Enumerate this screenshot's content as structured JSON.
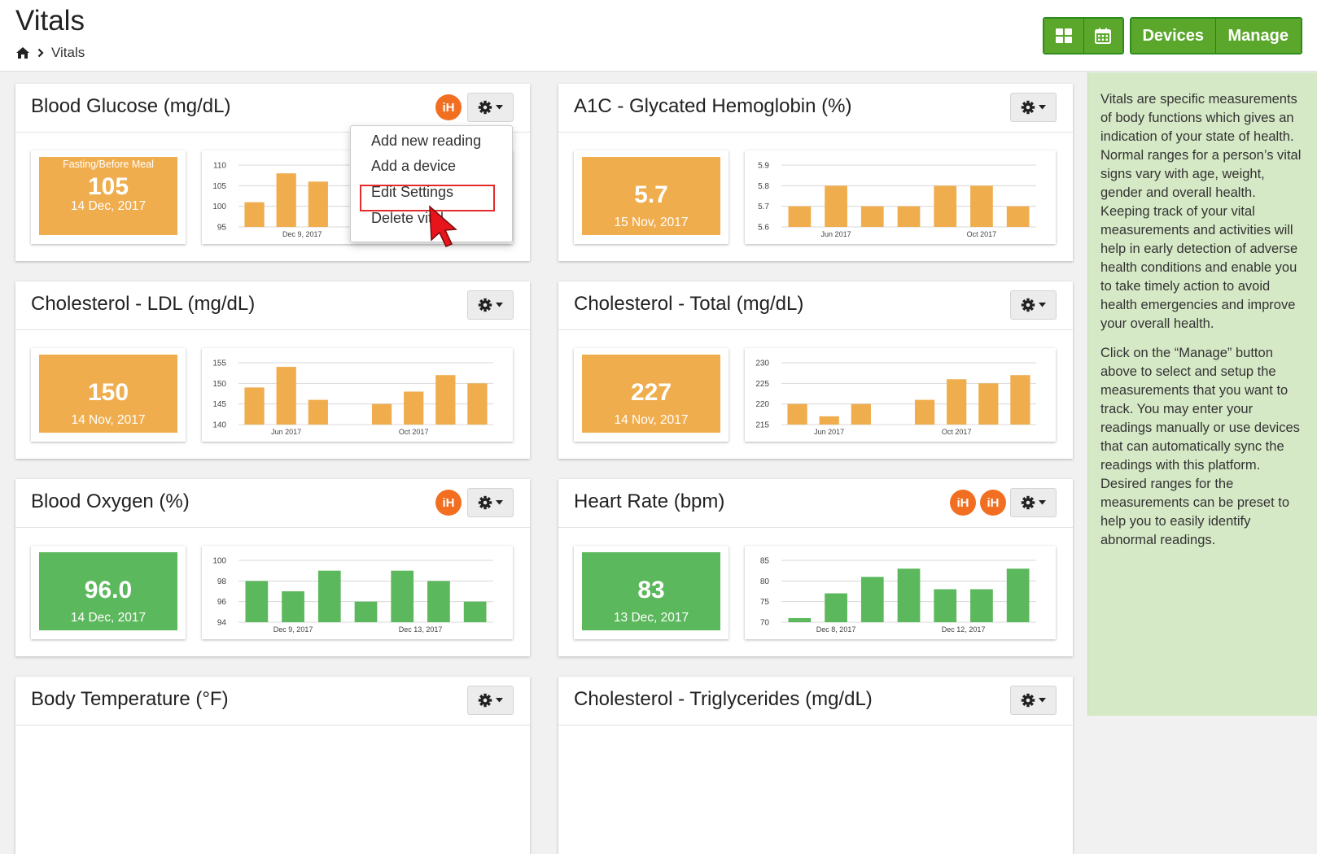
{
  "header": {
    "title": "Vitals",
    "breadcrumb": "Vitals"
  },
  "toolbar": {
    "devices_label": "Devices",
    "manage_label": "Manage"
  },
  "dropdown": {
    "items": [
      "Add new reading",
      "Add a device",
      "Edit Settings",
      "Delete vital"
    ]
  },
  "sidebar": {
    "p1": "Vitals are specific measurements of body functions which gives an indication of your state of health. Normal ranges for a person’s vital signs vary with age, weight, gender and overall health. Keeping track of your vital measurements and activities will help in early detection of adverse health conditions and enable you to take timely action to avoid health emergencies and improve your overall health.",
    "p2": "Click on the “Manage” button above to select and setup the measurements that you want to track. You may enter your readings manually or use devices that can automatically sync the readings with this platform. Desired ranges for the measurements can be preset to help you to easily identify abnormal readings."
  },
  "colors": {
    "orange": "#f0ad4e",
    "green": "#5cb85c",
    "ih_badge": "#f26f21",
    "button_green": "#5ba72b"
  },
  "cards": [
    {
      "title": "Blood Glucose (mg/dL)",
      "ih_count": 1,
      "value": "105",
      "label": "Fasting/Before Meal",
      "date": "14 Dec, 2017",
      "color": "orange"
    },
    {
      "title": "A1C - Glycated Hemoglobin (%)",
      "ih_count": 0,
      "value": "5.7",
      "label": "",
      "date": "15 Nov, 2017",
      "color": "orange"
    },
    {
      "title": "Cholesterol - LDL (mg/dL)",
      "ih_count": 0,
      "value": "150",
      "label": "",
      "date": "14 Nov, 2017",
      "color": "orange"
    },
    {
      "title": "Cholesterol - Total (mg/dL)",
      "ih_count": 0,
      "value": "227",
      "label": "",
      "date": "14 Nov, 2017",
      "color": "orange"
    },
    {
      "title": "Blood Oxygen (%)",
      "ih_count": 1,
      "value": "96.0",
      "label": "",
      "date": "14 Dec, 2017",
      "color": "green"
    },
    {
      "title": "Heart Rate (bpm)",
      "ih_count": 2,
      "value": "83",
      "label": "",
      "date": "13 Dec, 2017",
      "color": "green"
    },
    {
      "title": "Body Temperature (°F)",
      "ih_count": 0
    },
    {
      "title": "Cholesterol - Triglycerides (mg/dL)",
      "ih_count": 0
    }
  ],
  "chart_data": [
    {
      "type": "bar",
      "title": "Blood Glucose (mg/dL)",
      "yticks": [
        "110",
        "105",
        "100",
        "95"
      ],
      "ylim": [
        95,
        110
      ],
      "values": [
        101,
        108,
        106
      ],
      "xticks": [
        "Dec 9, 2017"
      ],
      "xtick_pos": [
        2
      ],
      "n": 8
    },
    {
      "type": "bar",
      "title": "A1C - Glycated Hemoglobin (%)",
      "yticks": [
        "5.9",
        "5.8",
        "5.7",
        "5.6"
      ],
      "ylim": [
        5.6,
        5.9
      ],
      "values": [
        5.7,
        5.8,
        5.7,
        5.7,
        5.8,
        5.8,
        5.7
      ],
      "xticks": [
        "Jun 2017",
        "Oct 2017"
      ],
      "xtick_pos": [
        1.5,
        5.5
      ]
    },
    {
      "type": "bar",
      "title": "Cholesterol - LDL (mg/dL)",
      "yticks": [
        "155",
        "150",
        "145",
        "140"
      ],
      "ylim": [
        140,
        155
      ],
      "values": [
        149,
        154,
        146,
        null,
        145,
        148,
        152,
        150
      ],
      "xticks": [
        "Jun 2017",
        "Oct 2017"
      ],
      "xtick_pos": [
        1.5,
        5.5
      ]
    },
    {
      "type": "bar",
      "title": "Cholesterol - Total (mg/dL)",
      "yticks": [
        "230",
        "225",
        "220",
        "215"
      ],
      "ylim": [
        215,
        230
      ],
      "values": [
        220,
        217,
        220,
        null,
        221,
        226,
        225,
        227
      ],
      "xticks": [
        "Jun 2017",
        "Oct 2017"
      ],
      "xtick_pos": [
        1.5,
        5.5
      ]
    },
    {
      "type": "bar",
      "title": "Blood Oxygen (%)",
      "yticks": [
        "100",
        "98",
        "96",
        "94"
      ],
      "ylim": [
        94,
        100
      ],
      "values": [
        98,
        97,
        99,
        96,
        99,
        98,
        96
      ],
      "xticks": [
        "Dec 9, 2017",
        "Dec 13, 2017"
      ],
      "xtick_pos": [
        1.5,
        5
      ]
    },
    {
      "type": "bar",
      "title": "Heart Rate (bpm)",
      "yticks": [
        "85",
        "80",
        "75",
        "70"
      ],
      "ylim": [
        70,
        85
      ],
      "values": [
        71,
        77,
        81,
        83,
        78,
        78,
        83
      ],
      "xticks": [
        "Dec 8, 2017",
        "Dec 12, 2017"
      ],
      "xtick_pos": [
        1.5,
        5
      ]
    }
  ]
}
